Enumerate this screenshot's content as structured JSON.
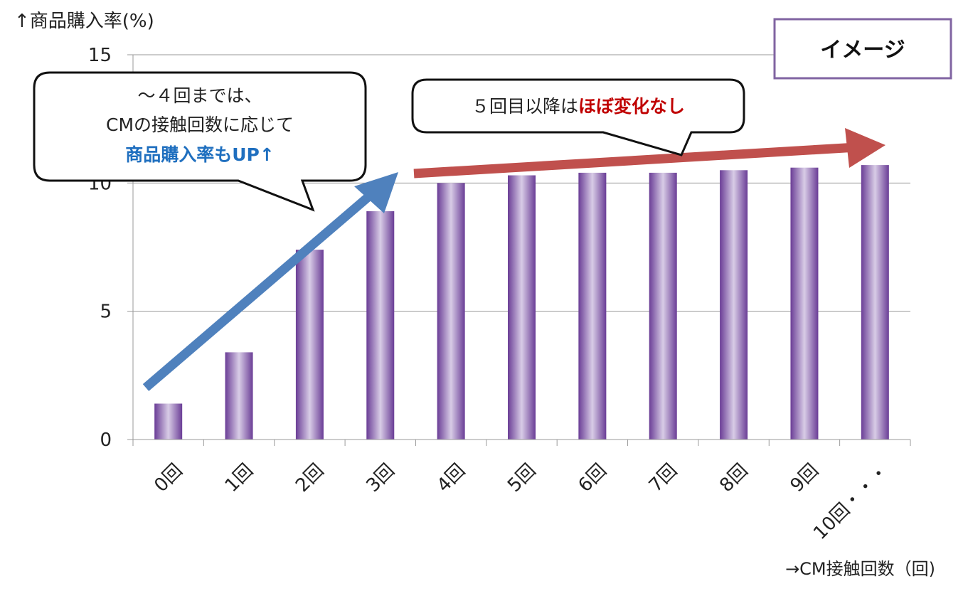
{
  "chart_data": {
    "type": "bar",
    "ylabel": "↑商品購入率(%)",
    "xlabel": "→CM接触回数（回)",
    "categories": [
      "0回",
      "1回",
      "2回",
      "3回",
      "4回",
      "5回",
      "6回",
      "7回",
      "8回",
      "9回",
      "10回・・・"
    ],
    "values": [
      1.4,
      3.4,
      7.4,
      8.9,
      10.0,
      10.3,
      10.4,
      10.4,
      10.5,
      10.6,
      10.7
    ],
    "ylim": [
      0,
      15
    ],
    "yticks": [
      0,
      5,
      10,
      15
    ],
    "grid": true,
    "bar_color": "#7b4fa0",
    "annotations": {
      "badge": "イメージ",
      "callout_left": {
        "line1": "～４回までは、",
        "line2": "CMの接触回数に応じて",
        "line3": "商品購入率もUP↑"
      },
      "callout_right": {
        "prefix": "５回目以降は",
        "highlight": "ほぼ変化なし"
      }
    },
    "colors": {
      "blue_arrow": "#4f81bd",
      "red_arrow": "#c0504d",
      "highlight_blue": "#1f6fbf",
      "highlight_red": "#c00000",
      "badge_border": "#8064a2"
    }
  }
}
